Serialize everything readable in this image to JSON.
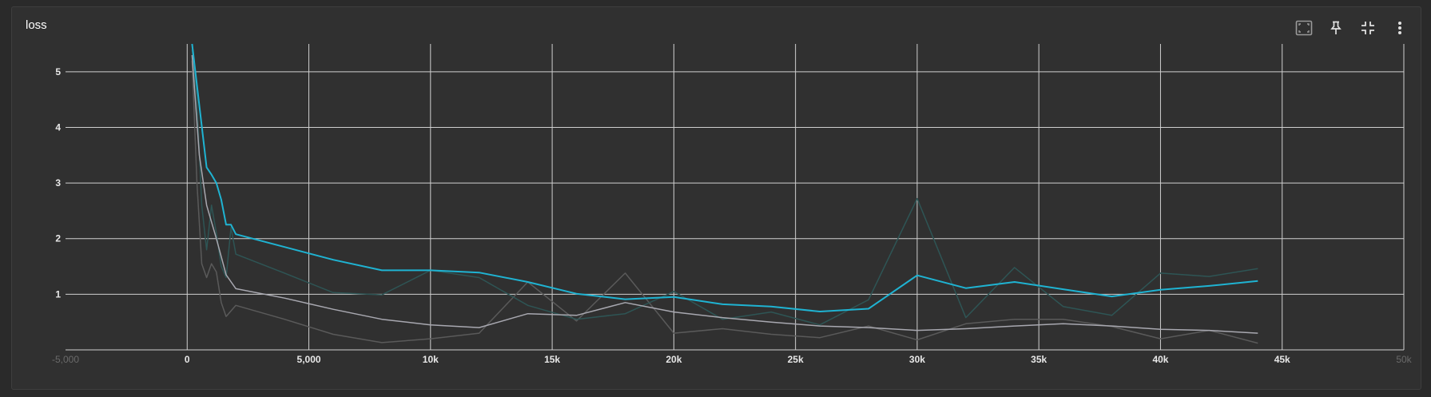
{
  "header": {
    "title": "loss",
    "toolbar": [
      {
        "name": "fit-domain-icon"
      },
      {
        "name": "pin-icon"
      },
      {
        "name": "collapse-icon"
      },
      {
        "name": "more-vert-icon"
      }
    ]
  },
  "chart_data": {
    "type": "line",
    "title": "loss",
    "xlabel": "",
    "ylabel": "",
    "xlim": [
      -5000,
      50000
    ],
    "ylim": [
      0,
      5.5
    ],
    "grid": true,
    "legend": "none",
    "x_ticks": [
      {
        "value": -5000,
        "label": "-5,000",
        "faint": true
      },
      {
        "value": 0,
        "label": "0"
      },
      {
        "value": 5000,
        "label": "5,000"
      },
      {
        "value": 10000,
        "label": "10k"
      },
      {
        "value": 15000,
        "label": "15k"
      },
      {
        "value": 20000,
        "label": "20k"
      },
      {
        "value": 25000,
        "label": "25k"
      },
      {
        "value": 30000,
        "label": "30k"
      },
      {
        "value": 35000,
        "label": "35k"
      },
      {
        "value": 40000,
        "label": "40k"
      },
      {
        "value": 45000,
        "label": "45k"
      },
      {
        "value": 50000,
        "label": "50k",
        "faint": true
      }
    ],
    "y_ticks": [
      {
        "value": 1,
        "label": "1"
      },
      {
        "value": 2,
        "label": "2"
      },
      {
        "value": 3,
        "label": "3"
      },
      {
        "value": 4,
        "label": "4"
      },
      {
        "value": 5,
        "label": "5"
      }
    ],
    "series": [
      {
        "color": "#5a5a5a",
        "points": [
          [
            200,
            5.2
          ],
          [
            400,
            3.0
          ],
          [
            600,
            1.55
          ],
          [
            800,
            1.3
          ],
          [
            1000,
            1.55
          ],
          [
            1200,
            1.4
          ],
          [
            1400,
            0.85
          ],
          [
            1600,
            0.6
          ],
          [
            2000,
            0.8
          ],
          [
            4000,
            0.55
          ],
          [
            6000,
            0.28
          ],
          [
            8000,
            0.13
          ],
          [
            10000,
            0.2
          ],
          [
            12000,
            0.3
          ],
          [
            14000,
            1.22
          ],
          [
            16000,
            0.52
          ],
          [
            18000,
            1.38
          ],
          [
            20000,
            0.3
          ],
          [
            22000,
            0.38
          ],
          [
            24000,
            0.28
          ],
          [
            26000,
            0.22
          ],
          [
            28000,
            0.43
          ],
          [
            30000,
            0.18
          ],
          [
            32000,
            0.47
          ],
          [
            34000,
            0.55
          ],
          [
            36000,
            0.55
          ],
          [
            38000,
            0.42
          ],
          [
            40000,
            0.2
          ],
          [
            42000,
            0.35
          ],
          [
            44000,
            0.12
          ]
        ]
      },
      {
        "color": "#2e5555",
        "points": [
          [
            200,
            5.4
          ],
          [
            400,
            4.5
          ],
          [
            600,
            2.6
          ],
          [
            800,
            1.8
          ],
          [
            1000,
            2.6
          ],
          [
            1200,
            2.1
          ],
          [
            1400,
            1.5
          ],
          [
            1600,
            1.3
          ],
          [
            1800,
            2.2
          ],
          [
            2000,
            1.72
          ],
          [
            4000,
            1.38
          ],
          [
            6000,
            1.03
          ],
          [
            8000,
            0.99
          ],
          [
            10000,
            1.43
          ],
          [
            12000,
            1.3
          ],
          [
            14000,
            0.8
          ],
          [
            16000,
            0.55
          ],
          [
            18000,
            0.65
          ],
          [
            20000,
            1.05
          ],
          [
            22000,
            0.55
          ],
          [
            24000,
            0.68
          ],
          [
            26000,
            0.45
          ],
          [
            28000,
            0.9
          ],
          [
            30000,
            2.72
          ],
          [
            32000,
            0.58
          ],
          [
            34000,
            1.48
          ],
          [
            36000,
            0.78
          ],
          [
            38000,
            0.62
          ],
          [
            40000,
            1.38
          ],
          [
            42000,
            1.32
          ],
          [
            44000,
            1.46
          ]
        ]
      },
      {
        "color": "#a8a8b0",
        "points": [
          [
            200,
            5.3
          ],
          [
            500,
            3.5
          ],
          [
            800,
            2.6
          ],
          [
            1200,
            2.0
          ],
          [
            1600,
            1.35
          ],
          [
            2000,
            1.1
          ],
          [
            4000,
            0.93
          ],
          [
            6000,
            0.73
          ],
          [
            8000,
            0.55
          ],
          [
            10000,
            0.45
          ],
          [
            12000,
            0.4
          ],
          [
            14000,
            0.65
          ],
          [
            16000,
            0.62
          ],
          [
            18000,
            0.85
          ],
          [
            20000,
            0.68
          ],
          [
            22000,
            0.58
          ],
          [
            24000,
            0.5
          ],
          [
            26000,
            0.43
          ],
          [
            28000,
            0.4
          ],
          [
            30000,
            0.35
          ],
          [
            32000,
            0.38
          ],
          [
            34000,
            0.43
          ],
          [
            36000,
            0.47
          ],
          [
            38000,
            0.43
          ],
          [
            40000,
            0.37
          ],
          [
            42000,
            0.35
          ],
          [
            44000,
            0.3
          ]
        ]
      },
      {
        "color": "#1fb3d2",
        "points": [
          [
            200,
            5.5
          ],
          [
            800,
            3.28
          ],
          [
            1000,
            3.15
          ],
          [
            1200,
            3.0
          ],
          [
            1400,
            2.7
          ],
          [
            1600,
            2.25
          ],
          [
            1800,
            2.25
          ],
          [
            2000,
            2.08
          ],
          [
            4000,
            1.85
          ],
          [
            6000,
            1.62
          ],
          [
            8000,
            1.43
          ],
          [
            10000,
            1.43
          ],
          [
            12000,
            1.39
          ],
          [
            14000,
            1.22
          ],
          [
            16000,
            1.01
          ],
          [
            18000,
            0.91
          ],
          [
            20000,
            0.95
          ],
          [
            22000,
            0.82
          ],
          [
            24000,
            0.78
          ],
          [
            26000,
            0.69
          ],
          [
            28000,
            0.74
          ],
          [
            30000,
            1.34
          ],
          [
            32000,
            1.11
          ],
          [
            34000,
            1.22
          ],
          [
            36000,
            1.09
          ],
          [
            38000,
            0.96
          ],
          [
            40000,
            1.08
          ],
          [
            42000,
            1.15
          ],
          [
            44000,
            1.24
          ]
        ]
      }
    ]
  }
}
